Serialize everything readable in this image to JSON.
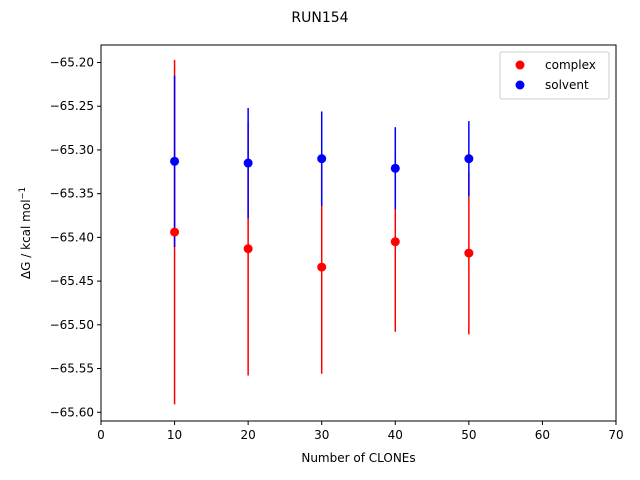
{
  "chart_data": {
    "type": "scatter",
    "title": "RUN154",
    "xlabel": "Number of CLONEs",
    "ylabel": "ΔG / kcal mol",
    "ylabel_superscript": "−1",
    "xlim": [
      0,
      70
    ],
    "ylim": [
      -65.61,
      -65.18
    ],
    "xticks": [
      0,
      10,
      20,
      30,
      40,
      50,
      60,
      70
    ],
    "xtick_labels": [
      "0",
      "10",
      "20",
      "30",
      "40",
      "50",
      "60",
      "70"
    ],
    "yticks": [
      -65.6,
      -65.55,
      -65.5,
      -65.45,
      -65.4,
      -65.35,
      -65.3,
      -65.25,
      -65.2
    ],
    "ytick_labels": [
      "−65.60",
      "−65.55",
      "−65.50",
      "−65.45",
      "−65.40",
      "−65.35",
      "−65.30",
      "−65.25",
      "−65.20"
    ],
    "grid": false,
    "legend_position": "top-right",
    "series": [
      {
        "name": "complex",
        "color": "#ff0000",
        "x": [
          10,
          20,
          30,
          40,
          50
        ],
        "y": [
          -65.394,
          -65.413,
          -65.434,
          -65.405,
          -65.418
        ],
        "err": [
          0.197,
          0.145,
          0.122,
          0.103,
          0.093
        ]
      },
      {
        "name": "solvent",
        "color": "#0000ff",
        "x": [
          10,
          20,
          30,
          40,
          50
        ],
        "y": [
          -65.313,
          -65.315,
          -65.31,
          -65.321,
          -65.31
        ],
        "err": [
          0.098,
          0.063,
          0.054,
          0.047,
          0.043
        ]
      }
    ]
  }
}
